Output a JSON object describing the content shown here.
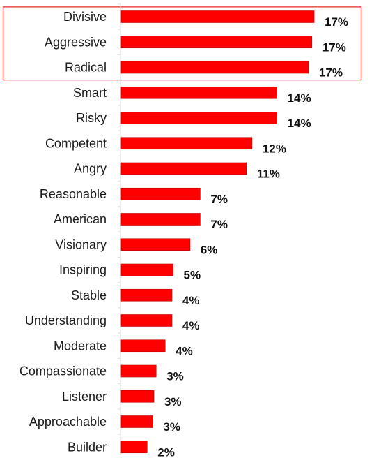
{
  "chart_data": {
    "type": "bar",
    "orientation": "horizontal",
    "categories": [
      "Divisive",
      "Aggressive",
      "Radical",
      "Smart",
      "Risky",
      "Competent",
      "Angry",
      "Reasonable",
      "American",
      "Visionary",
      "Inspiring",
      "Stable",
      "Understanding",
      "Moderate",
      "Compassionate",
      "Listener",
      "Approachable",
      "Builder"
    ],
    "values": [
      17.1,
      16.9,
      16.6,
      13.8,
      13.8,
      11.6,
      11.1,
      7.0,
      7.0,
      6.1,
      4.6,
      4.5,
      4.5,
      3.9,
      3.1,
      2.9,
      2.8,
      2.3
    ],
    "value_labels": [
      "17%",
      "17%",
      "17%",
      "14%",
      "14%",
      "12%",
      "11%",
      "7%",
      "7%",
      "6%",
      "5%",
      "4%",
      "4%",
      "4%",
      "3%",
      "3%",
      "3%",
      "2%"
    ],
    "xlim": [
      0,
      20
    ],
    "bar_color": "#ff0000",
    "bar_edge_color": "#c00000",
    "highlight": {
      "categories": [
        "Divisive",
        "Aggressive",
        "Radical"
      ],
      "border_color": "#e02020"
    },
    "grid": false,
    "legend": "none"
  }
}
